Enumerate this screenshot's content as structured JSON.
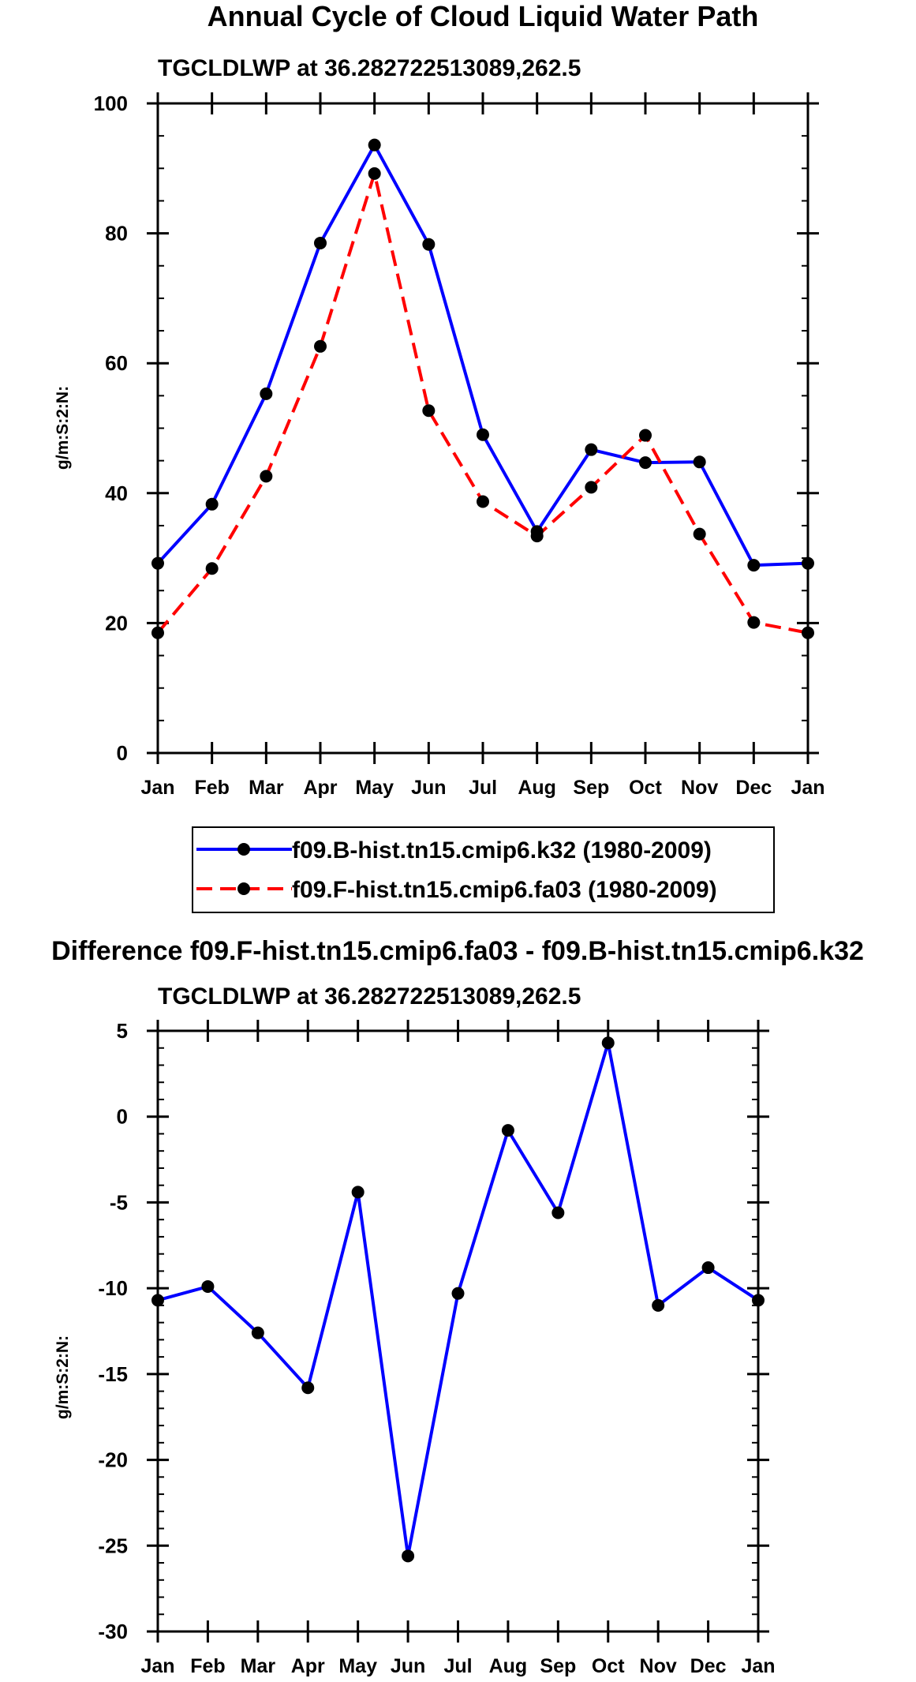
{
  "chart_data": [
    {
      "type": "line",
      "title": "Annual Cycle of Cloud Liquid Water Path",
      "subtitle": "TGCLDLWP at 36.282722513089,262.5",
      "xlabel": "",
      "ylabel": "g/m:S:2:N:",
      "categories": [
        "Jan",
        "Feb",
        "Mar",
        "Apr",
        "May",
        "Jun",
        "Jul",
        "Aug",
        "Sep",
        "Oct",
        "Nov",
        "Dec",
        "Jan"
      ],
      "ylim": [
        0,
        100
      ],
      "yticks": [
        0,
        20,
        40,
        60,
        80,
        100
      ],
      "yminor_step": 5,
      "legend": "bottom",
      "series": [
        {
          "name": "f09.B-hist.tn15.cmip6.k32 (1980-2009)",
          "color": "#0000ff",
          "dash": "solid",
          "values": [
            29.2,
            38.3,
            55.3,
            78.5,
            93.6,
            78.3,
            49.0,
            34.1,
            46.7,
            44.7,
            44.8,
            28.9,
            29.2
          ]
        },
        {
          "name": "f09.F-hist.tn15.cmip6.fa03 (1980-2009)",
          "color": "#ff0000",
          "dash": "dashed",
          "values": [
            18.5,
            28.4,
            42.6,
            62.6,
            89.2,
            52.7,
            38.7,
            33.4,
            40.9,
            48.9,
            33.7,
            20.1,
            18.5
          ]
        }
      ]
    },
    {
      "type": "line",
      "title": "Difference f09.F-hist.tn15.cmip6.fa03 - f09.B-hist.tn15.cmip6.k32",
      "subtitle": "TGCLDLWP at 36.282722513089,262.5",
      "xlabel": "",
      "ylabel": "g/m:S:2:N:",
      "categories": [
        "Jan",
        "Feb",
        "Mar",
        "Apr",
        "May",
        "Jun",
        "Jul",
        "Aug",
        "Sep",
        "Oct",
        "Nov",
        "Dec",
        "Jan"
      ],
      "ylim": [
        -30,
        5
      ],
      "yticks": [
        -30,
        -25,
        -20,
        -15,
        -10,
        -5,
        0,
        5
      ],
      "yminor_step": 1,
      "series": [
        {
          "name": "difference",
          "color": "#0000ff",
          "dash": "solid",
          "values": [
            -10.7,
            -9.9,
            -12.6,
            -15.8,
            -4.4,
            -25.6,
            -10.3,
            -0.8,
            -5.6,
            4.3,
            -11.0,
            -8.8,
            -10.7
          ]
        }
      ]
    }
  ]
}
